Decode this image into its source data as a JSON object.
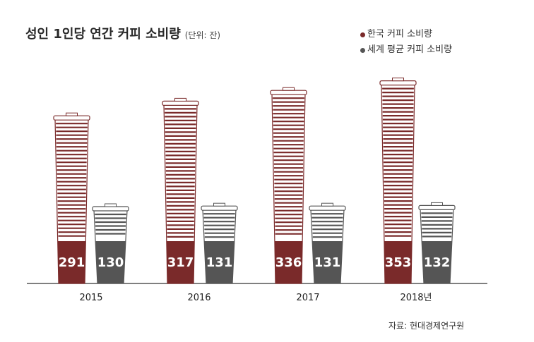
{
  "header": {
    "title": "성인 1인당 연간 커피 소비량",
    "subtitle": "(단위: 잔)"
  },
  "legend": {
    "items": [
      {
        "label": "한국 커피 소비량",
        "color": "#7a2a2a"
      },
      {
        "label": "세계 평균 커피 소비량",
        "color": "#555555"
      }
    ]
  },
  "source": "자료: 현대경제연구원",
  "chart_data": {
    "type": "bar",
    "categories": [
      "2015",
      "2016",
      "2017",
      "2018년"
    ],
    "series": [
      {
        "name": "한국 커피 소비량",
        "values": [
          291,
          317,
          336,
          353
        ],
        "color": "#7a2a2a"
      },
      {
        "name": "세계 평균 커피 소비량",
        "values": [
          130,
          131,
          131,
          132
        ],
        "color": "#555555"
      }
    ],
    "title": "성인 1인당 연간 커피 소비량",
    "ylabel": "",
    "xlabel": "",
    "grid": false,
    "legend_position": "top-right"
  }
}
